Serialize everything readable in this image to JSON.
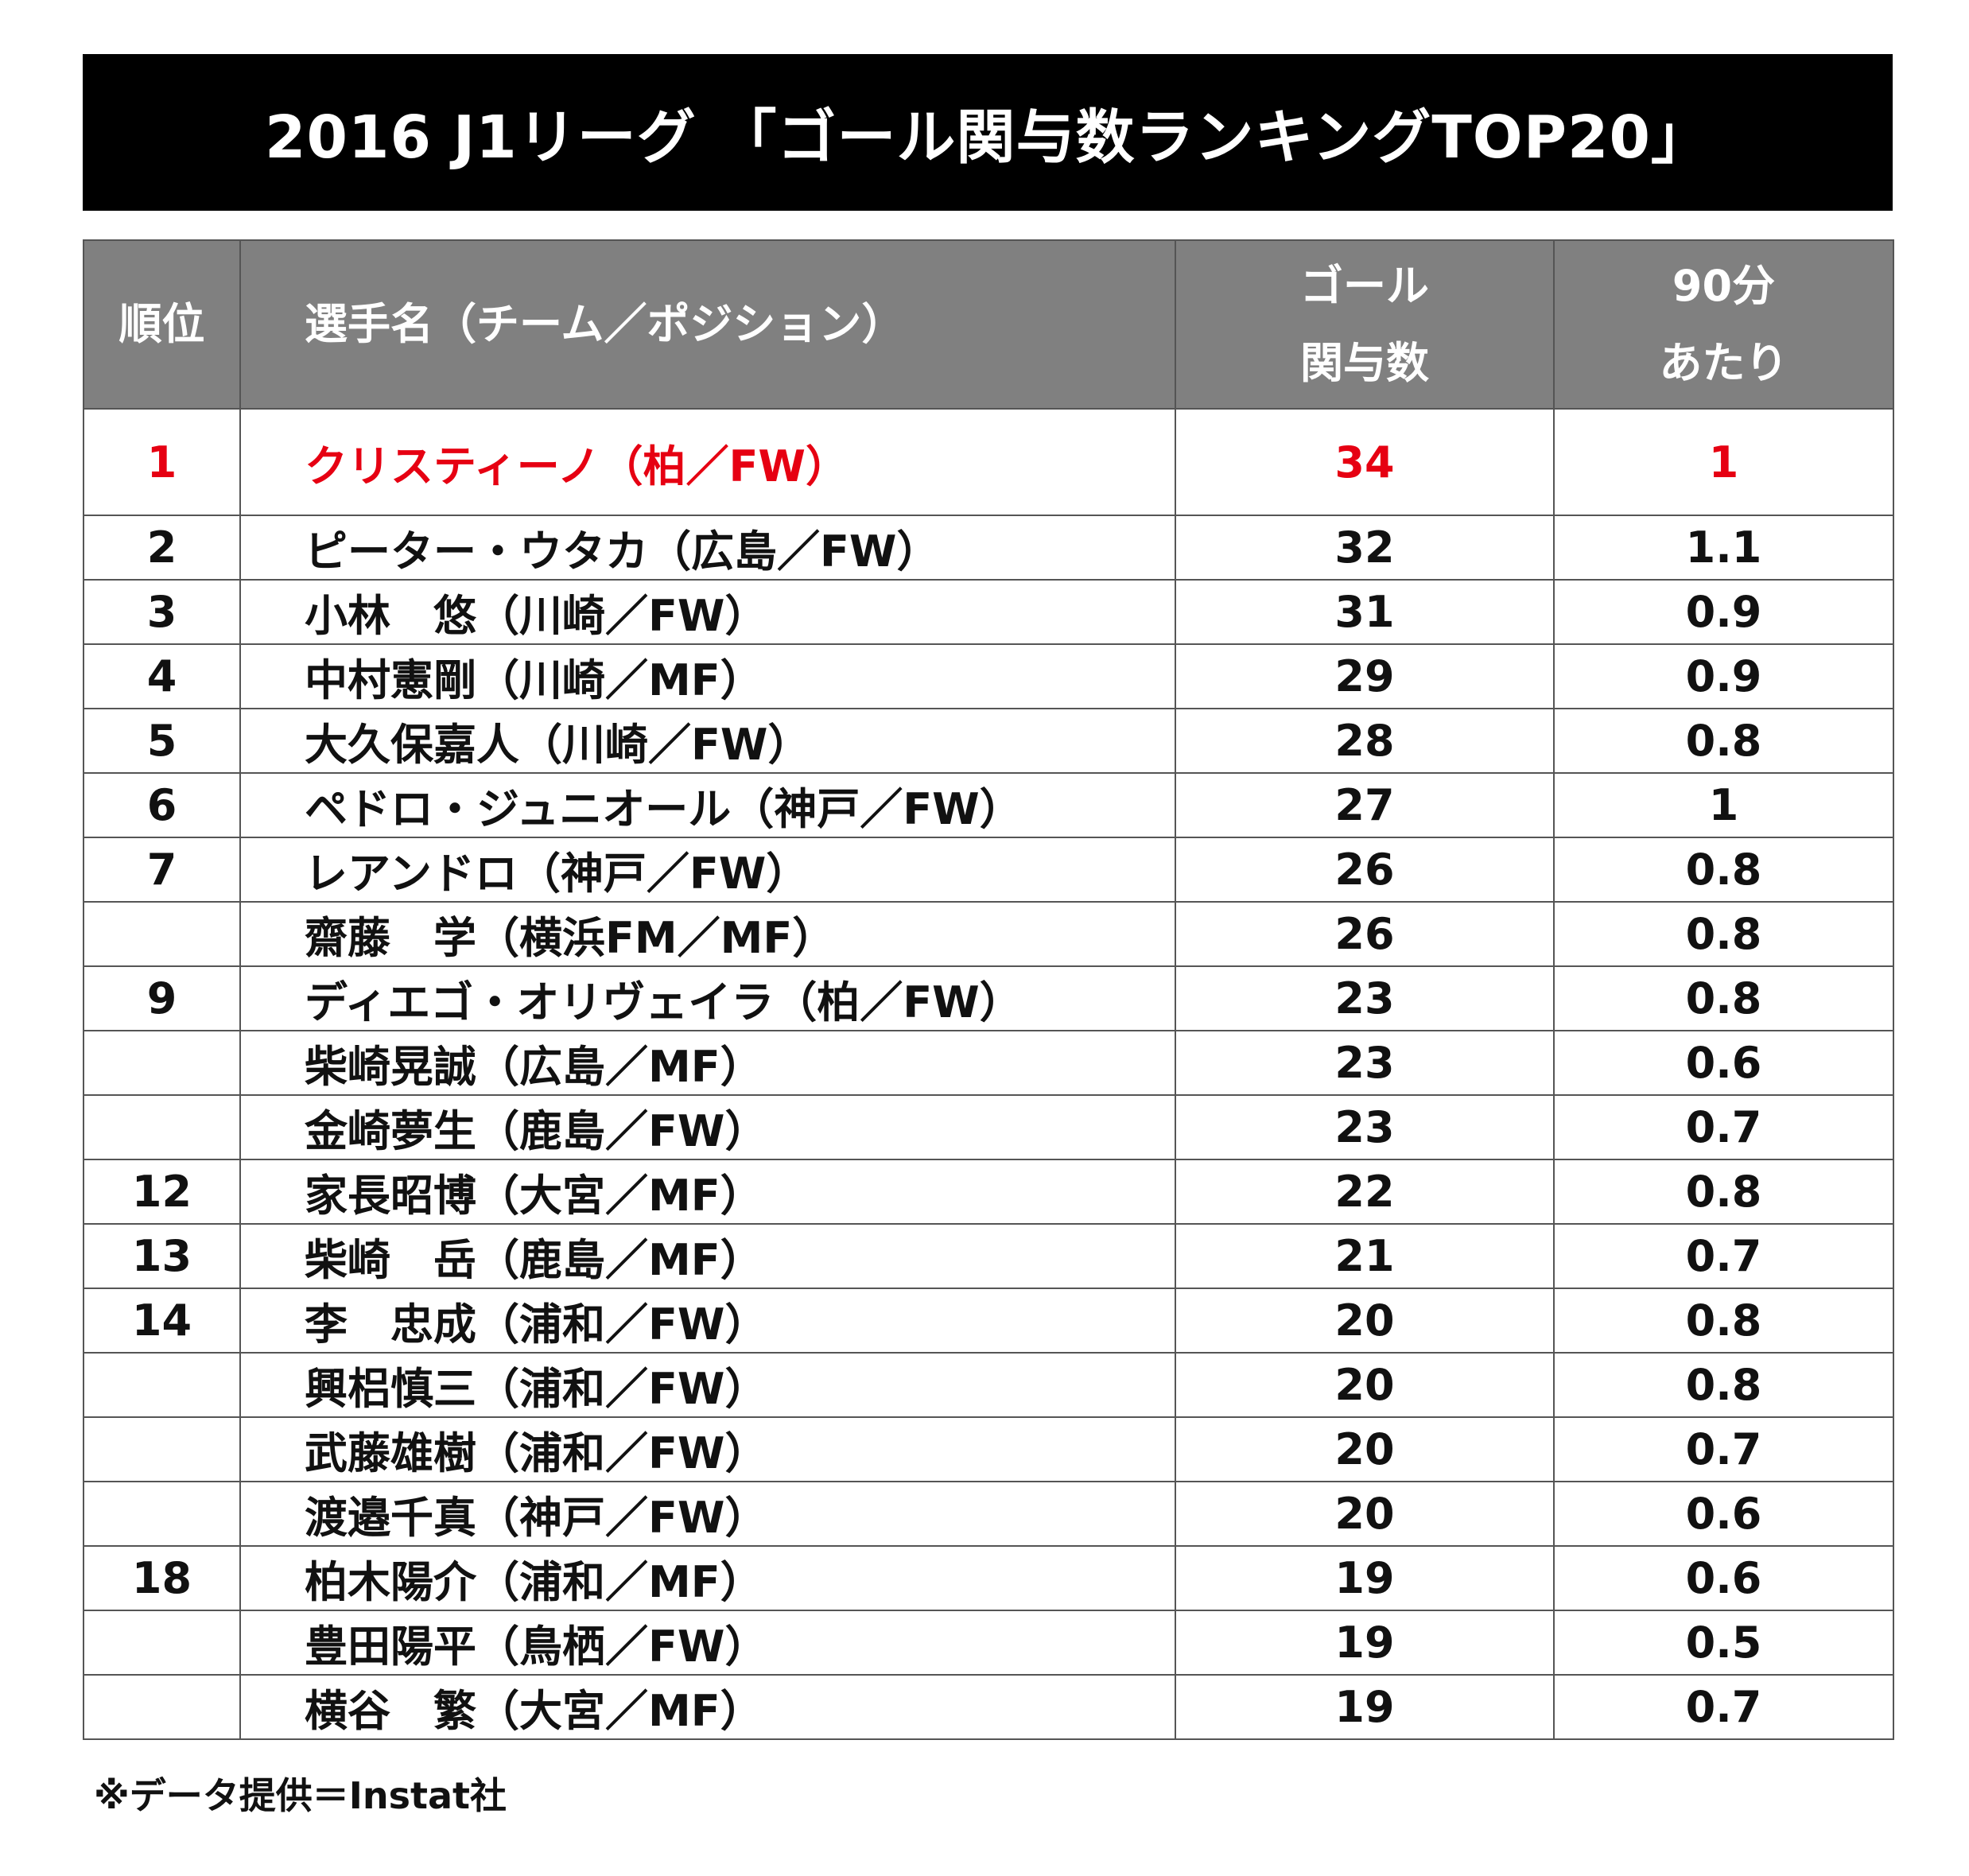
{
  "title": "2016 J1リーグ 「ゴール関与数ランキングTOP20」",
  "highlight_color": "#e60012",
  "header": {
    "rank": "順位",
    "name": "選手名（チーム／ポジション）",
    "goals_line1": "ゴール",
    "goals_line2": "関与数",
    "per90_line1": "90分",
    "per90_line2": "あたり"
  },
  "rows": [
    {
      "rank": "1",
      "name": "クリスティーノ（柏／FW）",
      "goals": "34",
      "per90": "1"
    },
    {
      "rank": "2",
      "name": "ピーター・ウタカ（広島／FW）",
      "goals": "32",
      "per90": "1.1"
    },
    {
      "rank": "3",
      "name": "小林　悠（川崎／FW）",
      "goals": "31",
      "per90": "0.9"
    },
    {
      "rank": "4",
      "name": "中村憲剛（川崎／MF）",
      "goals": "29",
      "per90": "0.9"
    },
    {
      "rank": "5",
      "name": "大久保嘉人（川崎／FW）",
      "goals": "28",
      "per90": "0.8"
    },
    {
      "rank": "6",
      "name": "ペドロ・ジュニオール（神戸／FW）",
      "goals": "27",
      "per90": "1"
    },
    {
      "rank": "7",
      "name": "レアンドロ（神戸／FW）",
      "goals": "26",
      "per90": "0.8"
    },
    {
      "rank": "",
      "name": "齋藤　学（横浜FM／MF）",
      "goals": "26",
      "per90": "0.8"
    },
    {
      "rank": "9",
      "name": "ディエゴ・オリヴェイラ（柏／FW）",
      "goals": "23",
      "per90": "0.8"
    },
    {
      "rank": "",
      "name": "柴崎晃誠（広島／MF）",
      "goals": "23",
      "per90": "0.6"
    },
    {
      "rank": "",
      "name": "金崎夢生（鹿島／FW）",
      "goals": "23",
      "per90": "0.7"
    },
    {
      "rank": "12",
      "name": "家長昭博（大宮／MF）",
      "goals": "22",
      "per90": "0.8"
    },
    {
      "rank": "13",
      "name": "柴崎　岳（鹿島／MF）",
      "goals": "21",
      "per90": "0.7"
    },
    {
      "rank": "14",
      "name": "李　忠成（浦和／FW）",
      "goals": "20",
      "per90": "0.8"
    },
    {
      "rank": "",
      "name": "興梠慎三（浦和／FW）",
      "goals": "20",
      "per90": "0.8"
    },
    {
      "rank": "",
      "name": "武藤雄樹（浦和／FW）",
      "goals": "20",
      "per90": "0.7"
    },
    {
      "rank": "",
      "name": "渡邉千真（神戸／FW）",
      "goals": "20",
      "per90": "0.6"
    },
    {
      "rank": "18",
      "name": "柏木陽介（浦和／MF）",
      "goals": "19",
      "per90": "0.6"
    },
    {
      "rank": "",
      "name": "豊田陽平（鳥栖／FW）",
      "goals": "19",
      "per90": "0.5"
    },
    {
      "rank": "",
      "name": "横谷　繁（大宮／MF）",
      "goals": "19",
      "per90": "0.7"
    }
  ],
  "footnote": "※データ提供＝Instat社"
}
